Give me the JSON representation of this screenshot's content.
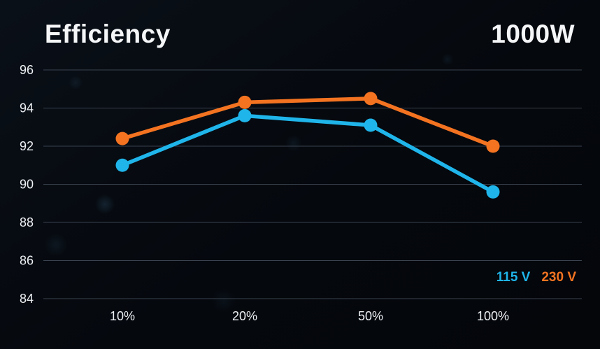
{
  "header": {
    "title": "Efficiency",
    "wattage": "1000W"
  },
  "chart_data": {
    "type": "line",
    "title": "Efficiency",
    "subtitle": "1000W",
    "xlabel": "",
    "ylabel": "",
    "categories": [
      "10%",
      "20%",
      "50%",
      "100%"
    ],
    "series": [
      {
        "name": "115 V",
        "color": "#1fb5ea",
        "values": [
          91.0,
          93.6,
          93.1,
          89.6
        ]
      },
      {
        "name": "230 V",
        "color": "#f37321",
        "values": [
          92.4,
          94.3,
          94.5,
          92.0
        ]
      }
    ],
    "ylim": [
      84,
      96
    ],
    "yticks": [
      84,
      86,
      88,
      90,
      92,
      94,
      96
    ],
    "grid": "horizontal",
    "grid_color": "#39424e",
    "text_color": "#eef1f4",
    "legend_position": "bottom-right"
  }
}
